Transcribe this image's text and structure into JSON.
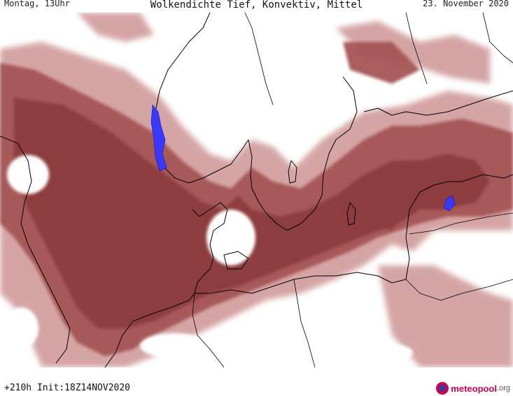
{
  "header": {
    "left": "Montag, 13Uhr",
    "title": "Wolkendichte  Tief, Konvektiv, Mittel",
    "right": "23. November 2020"
  },
  "footer": {
    "run": "+210h Init:18Z14NOV2020",
    "brand": "meteopool",
    "tld": ".org"
  },
  "colors": {
    "cloud_dark": "#8b3a3a",
    "cloud_mid": "#a55555",
    "cloud_light": "#d3a0a0",
    "water_highlight": "#3a3aff",
    "border": "#000000"
  },
  "legend_icon": "meteopool-logo-icon"
}
